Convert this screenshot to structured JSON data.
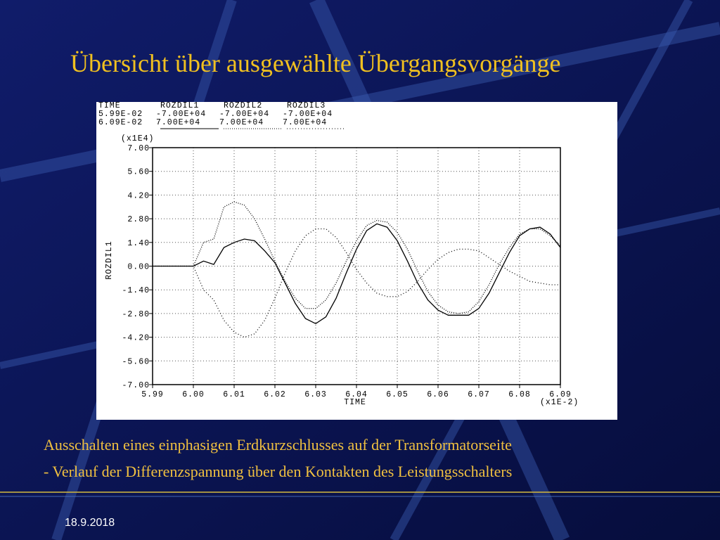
{
  "slide": {
    "title": "Übersicht über ausgewählte Übergangsvorgänge",
    "captions": [
      "Ausschalten eines einphasigen Erdkurzschlusses auf der Transformatorseite",
      "- Verlauf der Differenzspannung über den Kontakten des Leistungsschalters"
    ],
    "date": "18.9.2018"
  },
  "chart_data": {
    "type": "line",
    "x_label": "TIME",
    "x_unit": "(x1E-2)",
    "y_label": "ROZDIL1",
    "y_unit": "(x1E4)",
    "header": {
      "name": "TIME",
      "range_labels": [
        "5.99E-02",
        "6.09E-02"
      ]
    },
    "x": [
      5.99,
      5.9925,
      5.995,
      5.9975,
      6.0,
      6.0025,
      6.005,
      6.0075,
      6.01,
      6.0125,
      6.015,
      6.0175,
      6.02,
      6.0225,
      6.025,
      6.0275,
      6.03,
      6.0325,
      6.035,
      6.0375,
      6.04,
      6.0425,
      6.045,
      6.0475,
      6.05,
      6.0525,
      6.055,
      6.0575,
      6.06,
      6.0625,
      6.065,
      6.0675,
      6.07,
      6.0725,
      6.075,
      6.0775,
      6.08,
      6.0825,
      6.085,
      6.0875,
      6.09
    ],
    "series": [
      {
        "name": "ROZDIL1",
        "color": "#000000",
        "dash": "none",
        "range_labels": [
          "-7.00E+04",
          "7.00E+04"
        ],
        "values": [
          0,
          0,
          0,
          0,
          0,
          0.3,
          0.1,
          1.1,
          1.4,
          1.6,
          1.5,
          0.9,
          0.2,
          -1.0,
          -2.2,
          -3.1,
          -3.4,
          -3.0,
          -1.9,
          -0.4,
          1.0,
          2.1,
          2.5,
          2.3,
          1.5,
          0.3,
          -1.0,
          -2.0,
          -2.6,
          -2.9,
          -2.9,
          -2.9,
          -2.5,
          -1.6,
          -0.4,
          0.8,
          1.8,
          2.2,
          2.3,
          1.9,
          1.1
        ]
      },
      {
        "name": "ROZDIL2",
        "color": "#000000",
        "dash": "1,2",
        "range_labels": [
          "-7.00E+04",
          "7.00E+04"
        ],
        "values": [
          0,
          0,
          0,
          0,
          0,
          1.4,
          1.6,
          3.5,
          3.8,
          3.6,
          2.8,
          1.6,
          0.3,
          -0.9,
          -1.9,
          -2.5,
          -2.5,
          -2.0,
          -1.0,
          0.3,
          1.5,
          2.4,
          2.7,
          2.6,
          2.0,
          1.0,
          -0.3,
          -1.5,
          -2.3,
          -2.7,
          -2.8,
          -2.7,
          -2.1,
          -1.1,
          0.1,
          1.1,
          1.9,
          2.2,
          2.2,
          1.8,
          1.2
        ]
      },
      {
        "name": "ROZDIL3",
        "color": "#000000",
        "dash": "1,3",
        "range_labels": [
          "-7.00E+04",
          "7.00E+04"
        ],
        "values": [
          0,
          0,
          0,
          0,
          0,
          -1.4,
          -2.0,
          -3.2,
          -3.9,
          -4.2,
          -4.0,
          -3.2,
          -1.9,
          -0.4,
          0.9,
          1.8,
          2.2,
          2.2,
          1.7,
          0.8,
          -0.2,
          -1.0,
          -1.6,
          -1.8,
          -1.8,
          -1.5,
          -0.9,
          -0.2,
          0.4,
          0.8,
          1.0,
          1.0,
          0.9,
          0.5,
          0.1,
          -0.3,
          -0.6,
          -0.9,
          -1.0,
          -1.1,
          -1.1
        ]
      }
    ],
    "xlim": [
      5.99,
      6.09
    ],
    "xticks": [
      5.99,
      {
        "value": 6,
        "label": "6.00"
      },
      6.01,
      6.02,
      6.03,
      6.04,
      6.05,
      6.06,
      6.07,
      6.08,
      6.09
    ],
    "ylim": [
      -7,
      7
    ],
    "yticks": [
      {
        "value": -7,
        "label": "-7.00"
      },
      {
        "value": -5.6,
        "label": "-5.60"
      },
      {
        "value": -4.2,
        "label": "-4.20"
      },
      {
        "value": -2.8,
        "label": "-2.80"
      },
      {
        "value": -1.4,
        "label": "-1.40"
      },
      {
        "value": 0,
        "label": "0.00"
      },
      {
        "value": 1.4,
        "label": "1.40"
      },
      {
        "value": 2.8,
        "label": "2.80"
      },
      {
        "value": 4.2,
        "label": "4.20"
      },
      {
        "value": 5.6,
        "label": "5.60"
      },
      {
        "value": 7,
        "label": "7.00"
      }
    ],
    "grid": true
  }
}
